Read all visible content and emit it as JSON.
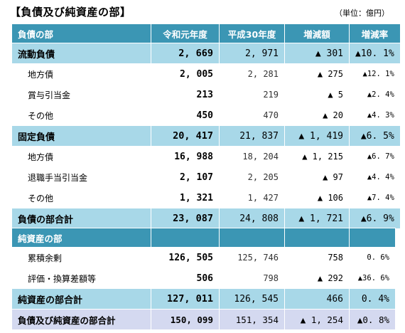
{
  "title": "【負債及び純資産の部】",
  "unit": "（単位：億円）",
  "headers": [
    "負債の部",
    "令和元年度",
    "平成30年度",
    "増減額",
    "増減率"
  ],
  "liab_rows": [
    {
      "type": "sec",
      "label": "流動負債",
      "cur": "2, 669",
      "prev": "2, 971",
      "diff": "▲ 301",
      "rate": "▲10. 1%"
    },
    {
      "type": "sub",
      "label": "地方債",
      "cur": "2, 005",
      "prev": "2, 281",
      "diff": "▲ 275",
      "rate": "▲12. 1%"
    },
    {
      "type": "sub",
      "label": "賞与引当金",
      "cur": "213",
      "prev": "219",
      "diff": "▲ 5",
      "rate": "▲2. 4%"
    },
    {
      "type": "sub",
      "label": "その他",
      "cur": "450",
      "prev": "470",
      "diff": "▲ 20",
      "rate": "▲4. 3%"
    },
    {
      "type": "sec",
      "label": "固定負債",
      "cur": "20, 417",
      "prev": "21, 837",
      "diff": "▲ 1, 419",
      "rate": "▲6. 5%"
    },
    {
      "type": "sub",
      "label": "地方債",
      "cur": "16, 988",
      "prev": "18, 204",
      "diff": "▲ 1, 215",
      "rate": "▲6. 7%"
    },
    {
      "type": "sub",
      "label": "退職手当引当金",
      "cur": "2, 107",
      "prev": "2, 205",
      "diff": "▲ 97",
      "rate": "▲4. 4%"
    },
    {
      "type": "sub",
      "label": "その他",
      "cur": "1, 321",
      "prev": "1, 427",
      "diff": "▲ 106",
      "rate": "▲7. 4%"
    },
    {
      "type": "sec",
      "label": "負債の部合計",
      "cur": "23, 087",
      "prev": "24, 808",
      "diff": "▲ 1, 721",
      "rate": "▲6. 9%"
    }
  ],
  "equity_header": "純資産の部",
  "equity_rows": [
    {
      "type": "sub",
      "label": "累積余剰",
      "cur": "126, 505",
      "prev": "125, 746",
      "diff": "758",
      "rate": "0. 6%"
    },
    {
      "type": "sub",
      "label": "評価・換算差額等",
      "cur": "506",
      "prev": "798",
      "diff": "▲ 292",
      "rate": "▲36. 6%"
    },
    {
      "type": "sec",
      "label": "純資産の部合計",
      "cur": "127, 011",
      "prev": "126, 545",
      "diff": "466",
      "rate": "0. 4%"
    },
    {
      "type": "grand",
      "label": "負債及び純資産の部合計",
      "cur": "150, 099",
      "prev": "151, 354",
      "diff": "▲ 1, 254",
      "rate": "▲0. 8%"
    }
  ]
}
